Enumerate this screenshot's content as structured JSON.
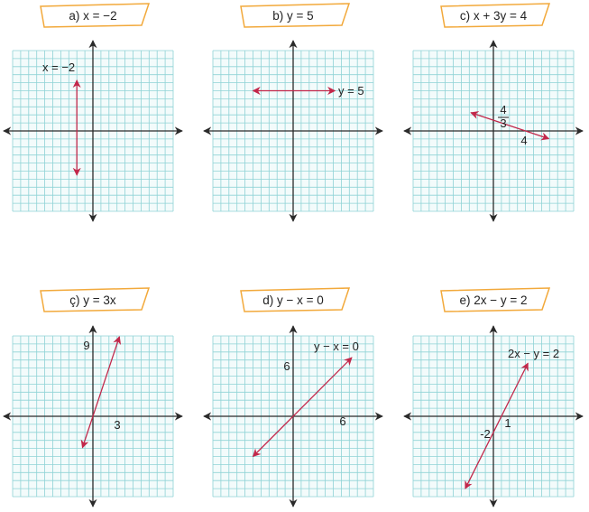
{
  "colors": {
    "grid": "#8fd3d6",
    "line": "#c2274a",
    "axis": "#2a2a2a",
    "tag_border": "#f2a93b"
  },
  "grid_range": [
    -10,
    10
  ],
  "panels": [
    {
      "id": "a",
      "title": "a) x = −2",
      "line": [
        [
          -2,
          -5.5
        ],
        [
          -2,
          6.3
        ]
      ],
      "labels": [
        "x = −2"
      ]
    },
    {
      "id": "b",
      "title": "b) y = 5",
      "line": [
        [
          -5,
          5
        ],
        [
          5.2,
          5
        ]
      ],
      "labels": [
        "y = 5"
      ]
    },
    {
      "id": "c",
      "title": "c) x + 3y = 4",
      "line": [
        [
          -2.8,
          2.27
        ],
        [
          6.9,
          -0.97
        ]
      ],
      "labels": [
        "4",
        "3",
        "4"
      ]
    },
    {
      "id": "ç",
      "title": "ç) y = 3x",
      "line": [
        [
          -1.3,
          -3.9
        ],
        [
          3.3,
          9.9
        ]
      ],
      "labels": [
        "9",
        "3"
      ]
    },
    {
      "id": "d",
      "title": "d) y − x = 0",
      "line": [
        [
          -5,
          -5
        ],
        [
          7.3,
          7.3
        ]
      ],
      "labels": [
        "y − x = 0",
        "6",
        "6"
      ]
    },
    {
      "id": "e",
      "title": "e) 2x − y = 2",
      "line": [
        [
          -3.5,
          -9
        ],
        [
          4.3,
          6.6
        ]
      ],
      "labels": [
        "2x − y = 2",
        "1",
        "-2"
      ]
    }
  ]
}
